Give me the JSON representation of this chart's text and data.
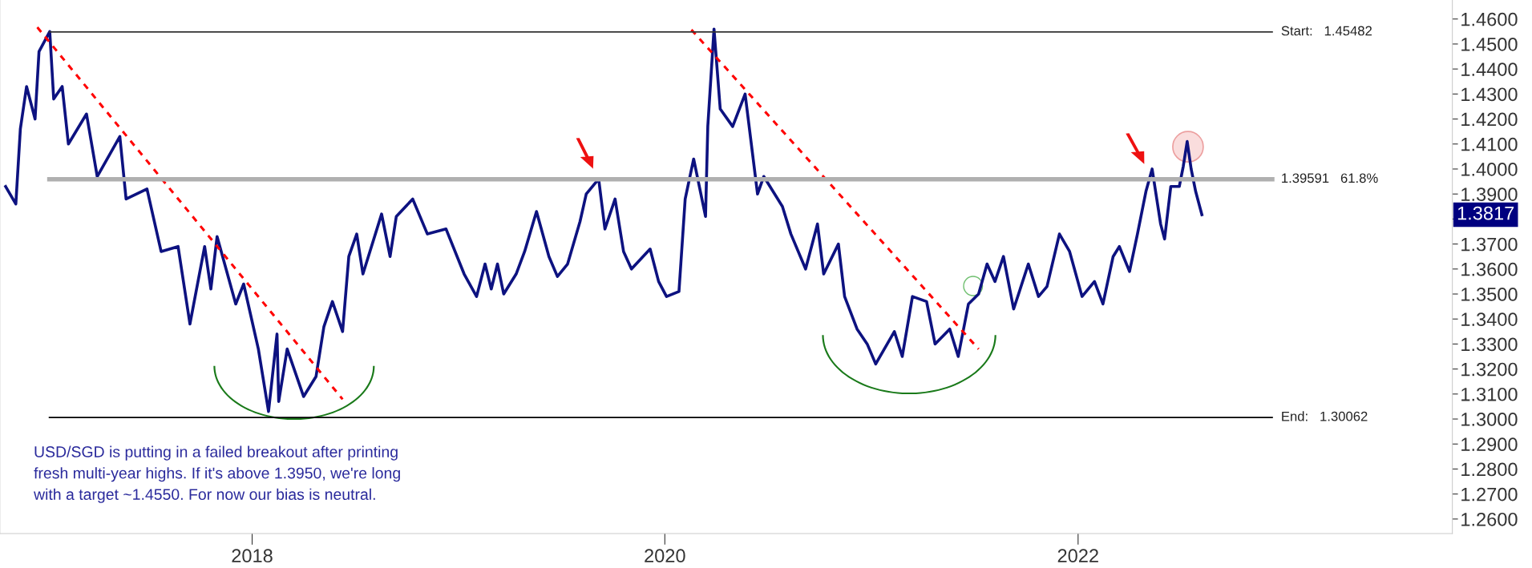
{
  "chart_data": {
    "type": "line",
    "xlim": [
      "2016-10-12",
      "2023-10-25"
    ],
    "xticks": [
      "2018",
      "2020",
      "2022"
    ],
    "ylim": [
      1.2542,
      1.4676
    ],
    "yticks": [
      {
        "value": 1.26,
        "label": "1.2600"
      },
      {
        "value": 1.27,
        "label": "1.2700"
      },
      {
        "value": 1.28,
        "label": "1.2800"
      },
      {
        "value": 1.29,
        "label": "1.2900"
      },
      {
        "value": 1.3,
        "label": "1.3000"
      },
      {
        "value": 1.31,
        "label": "1.3100"
      },
      {
        "value": 1.32,
        "label": "1.3200"
      },
      {
        "value": 1.33,
        "label": "1.3300"
      },
      {
        "value": 1.34,
        "label": "1.3400"
      },
      {
        "value": 1.35,
        "label": "1.3500"
      },
      {
        "value": 1.36,
        "label": "1.3600"
      },
      {
        "value": 1.37,
        "label": "1.3700"
      },
      {
        "value": 1.38,
        "label": null
      },
      {
        "value": 1.39,
        "label": "1.3900"
      },
      {
        "value": 1.4,
        "label": "1.4000"
      },
      {
        "value": 1.41,
        "label": "1.4100"
      },
      {
        "value": 1.42,
        "label": "1.4200"
      },
      {
        "value": 1.43,
        "label": "1.4300"
      },
      {
        "value": 1.44,
        "label": "1.4400"
      },
      {
        "value": 1.45,
        "label": "1.4500"
      },
      {
        "value": 1.46,
        "label": "1.4600"
      }
    ],
    "grid": false,
    "legend": false,
    "marker": "none",
    "line_style": "solid",
    "series": [
      {
        "color": "#0d1280",
        "x": [
          "2016-10-22",
          "2016-11-09",
          "2016-11-17",
          "2016-11-28",
          "2016-12-13",
          "2016-12-20",
          "2017-01-08",
          "2017-01-15",
          "2017-01-30",
          "2017-02-10",
          "2017-03-14",
          "2017-04-02",
          "2017-05-12",
          "2017-05-23",
          "2017-06-29",
          "2017-07-24",
          "2017-08-23",
          "2017-09-13",
          "2017-10-09",
          "2017-10-20",
          "2017-10-31",
          "2017-12-03",
          "2017-12-17",
          "2018-01-12",
          "2018-01-30",
          "2018-02-14",
          "2018-02-17",
          "2018-03-04",
          "2018-04-02",
          "2018-04-24",
          "2018-05-08",
          "2018-05-23",
          "2018-06-10",
          "2018-06-21",
          "2018-07-05",
          "2018-07-16",
          "2018-08-18",
          "2018-09-02",
          "2018-09-13",
          "2018-10-12",
          "2018-11-07",
          "2018-12-10",
          "2019-01-11",
          "2019-02-02",
          "2019-02-17",
          "2019-02-28",
          "2019-03-11",
          "2019-03-22",
          "2019-04-13",
          "2019-04-28",
          "2019-05-19",
          "2019-06-10",
          "2019-06-25",
          "2019-07-13",
          "2019-08-04",
          "2019-08-15",
          "2019-09-06",
          "2019-09-17",
          "2019-10-05",
          "2019-10-20",
          "2019-11-03",
          "2019-12-06",
          "2019-12-21",
          "2020-01-04",
          "2020-01-26",
          "2020-02-06",
          "2020-02-21",
          "2020-03-13",
          "2020-03-17",
          "2020-03-28",
          "2020-04-08",
          "2020-04-30",
          "2020-05-22",
          "2020-06-13",
          "2020-06-24",
          "2020-07-27",
          "2020-08-11",
          "2020-09-06",
          "2020-09-27",
          "2020-10-08",
          "2020-11-03",
          "2020-11-14",
          "2020-12-06",
          "2020-12-24",
          "2021-01-08",
          "2021-02-10",
          "2021-02-24",
          "2021-03-14",
          "2021-04-08",
          "2021-04-23",
          "2021-05-19",
          "2021-06-03",
          "2021-06-21",
          "2021-07-09",
          "2021-07-24",
          "2021-08-07",
          "2021-08-22",
          "2021-09-09",
          "2021-10-05",
          "2021-10-23",
          "2021-11-07",
          "2021-11-29",
          "2021-12-17",
          "2022-01-08",
          "2022-01-30",
          "2022-02-14",
          "2022-03-04",
          "2022-03-15",
          "2022-04-02",
          "2022-04-16",
          "2022-05-01",
          "2022-05-12",
          "2022-05-27",
          "2022-06-03",
          "2022-06-14",
          "2022-06-29",
          "2022-07-06",
          "2022-07-13",
          "2022-07-20",
          "2022-07-28",
          "2022-08-08"
        ],
        "values": [
          1.393,
          1.386,
          1.416,
          1.433,
          1.42,
          1.447,
          1.455,
          1.428,
          1.433,
          1.41,
          1.422,
          1.397,
          1.413,
          1.388,
          1.392,
          1.367,
          1.369,
          1.338,
          1.369,
          1.352,
          1.373,
          1.346,
          1.354,
          1.328,
          1.303,
          1.334,
          1.307,
          1.328,
          1.309,
          1.317,
          1.337,
          1.347,
          1.335,
          1.365,
          1.374,
          1.358,
          1.382,
          1.365,
          1.381,
          1.388,
          1.374,
          1.376,
          1.358,
          1.349,
          1.362,
          1.352,
          1.362,
          1.35,
          1.358,
          1.367,
          1.383,
          1.365,
          1.357,
          1.362,
          1.379,
          1.39,
          1.396,
          1.376,
          1.388,
          1.367,
          1.36,
          1.368,
          1.355,
          1.349,
          1.351,
          1.388,
          1.404,
          1.381,
          1.417,
          1.456,
          1.424,
          1.417,
          1.43,
          1.39,
          1.397,
          1.385,
          1.374,
          1.36,
          1.378,
          1.358,
          1.37,
          1.349,
          1.336,
          1.33,
          1.322,
          1.335,
          1.325,
          1.349,
          1.347,
          1.33,
          1.336,
          1.325,
          1.346,
          1.35,
          1.362,
          1.355,
          1.365,
          1.344,
          1.362,
          1.349,
          1.353,
          1.374,
          1.367,
          1.349,
          1.355,
          1.346,
          1.365,
          1.369,
          1.359,
          1.374,
          1.391,
          1.4,
          1.378,
          1.372,
          1.393,
          1.393,
          1.401,
          1.411,
          1.4,
          1.391,
          1.3817
        ]
      },
      {
        "type": "line",
        "color": "#ff0000",
        "line_style": "dashed",
        "x": [
          "2016-12-17",
          "2018-06-10"
        ],
        "values": [
          1.4567,
          1.3079
        ]
      },
      {
        "type": "line",
        "color": "#ff0000",
        "line_style": "dashed",
        "x": [
          "2020-02-17",
          "2021-07-09"
        ],
        "values": [
          1.4557,
          1.328
        ]
      }
    ],
    "ref_lines": [
      {
        "axis": "y",
        "value": 1.45482,
        "label": "Start:   1.45482",
        "color": "#333333"
      },
      {
        "axis": "y",
        "value": 1.39591,
        "label": "1.39591   61.8%",
        "color": "#b0b0b0"
      },
      {
        "axis": "y",
        "value": 1.30062,
        "label": "End:   1.30062",
        "color": "#000000"
      }
    ],
    "annotations": [
      "1.3817",
      "USD/SGD is putting in a failed breakout after printing\nfresh multi-year highs. If it's above 1.3950, we're long\nwith a target ~1.4550. For now our bias is neutral."
    ]
  }
}
